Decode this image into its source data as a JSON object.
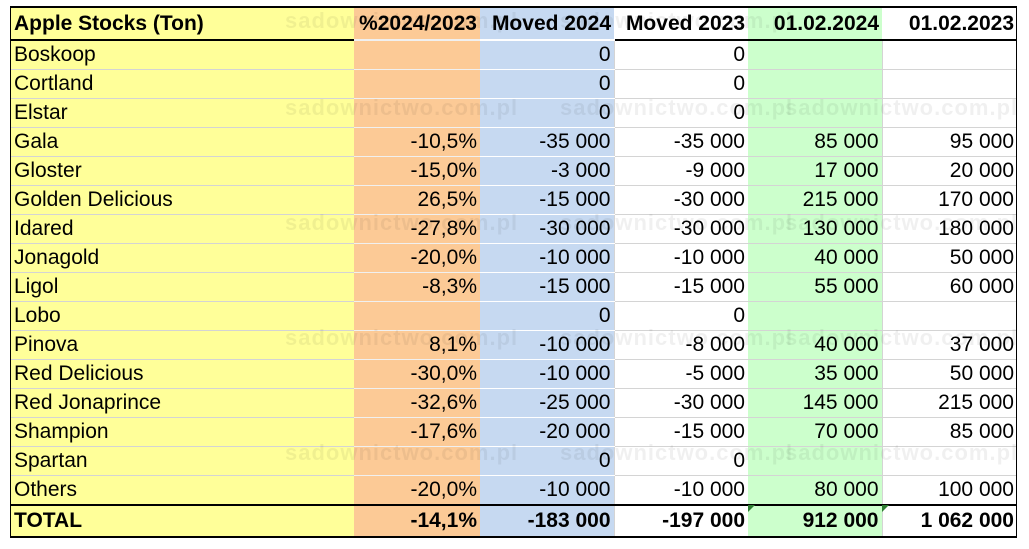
{
  "table": {
    "headers": [
      "Apple Stocks (Ton)",
      "%2024/2023",
      "Moved 2024",
      "Moved 2023",
      "01.02.2024",
      "01.02.2023"
    ],
    "rows": [
      [
        "Boskoop",
        "",
        "0",
        "0",
        "",
        ""
      ],
      [
        "Cortland",
        "",
        "0",
        "0",
        "",
        ""
      ],
      [
        "Elstar",
        "",
        "0",
        "0",
        "",
        ""
      ],
      [
        "Gala",
        "-10,5%",
        "-35 000",
        "-35 000",
        "85 000",
        "95 000"
      ],
      [
        "Gloster",
        "-15,0%",
        "-3 000",
        "-9 000",
        "17 000",
        "20 000"
      ],
      [
        "Golden Delicious",
        "26,5%",
        "-15 000",
        "-30 000",
        "215 000",
        "170 000"
      ],
      [
        "Idared",
        "-27,8%",
        "-30 000",
        "-30 000",
        "130 000",
        "180 000"
      ],
      [
        "Jonagold",
        "-20,0%",
        "-10 000",
        "-10 000",
        "40 000",
        "50 000"
      ],
      [
        "Ligol",
        "-8,3%",
        "-15 000",
        "-15 000",
        "55 000",
        "60 000"
      ],
      [
        "Lobo",
        "",
        "0",
        "0",
        "",
        ""
      ],
      [
        "Pinova",
        "8,1%",
        "-10 000",
        "-8 000",
        "40 000",
        "37 000"
      ],
      [
        "Red Delicious",
        "-30,0%",
        "-10 000",
        "-5 000",
        "35 000",
        "50 000"
      ],
      [
        "Red Jonaprince",
        "-32,6%",
        "-25 000",
        "-30 000",
        "145 000",
        "215 000"
      ],
      [
        "Shampion",
        "-17,6%",
        "-20 000",
        "-15 000",
        "70 000",
        "85 000"
      ],
      [
        "Spartan",
        "",
        "0",
        "0",
        "",
        ""
      ],
      [
        "Others",
        "-20,0%",
        "-10 000",
        "-10 000",
        "80 000",
        "100 000"
      ]
    ],
    "total": [
      "TOTAL",
      "-14,1%",
      "-183 000",
      "-197 000",
      "912 000",
      "1 062 000"
    ]
  },
  "watermark": "sadownictwo.com.pl",
  "colors": {
    "variety_column": "#ffff99",
    "percent_column": "#fcca96",
    "moved_2024_column": "#c6d9f1",
    "moved_2023_column": "#ffffff",
    "stock_2024_column": "#ccffcc",
    "stock_2023_column": "#ffffff"
  }
}
